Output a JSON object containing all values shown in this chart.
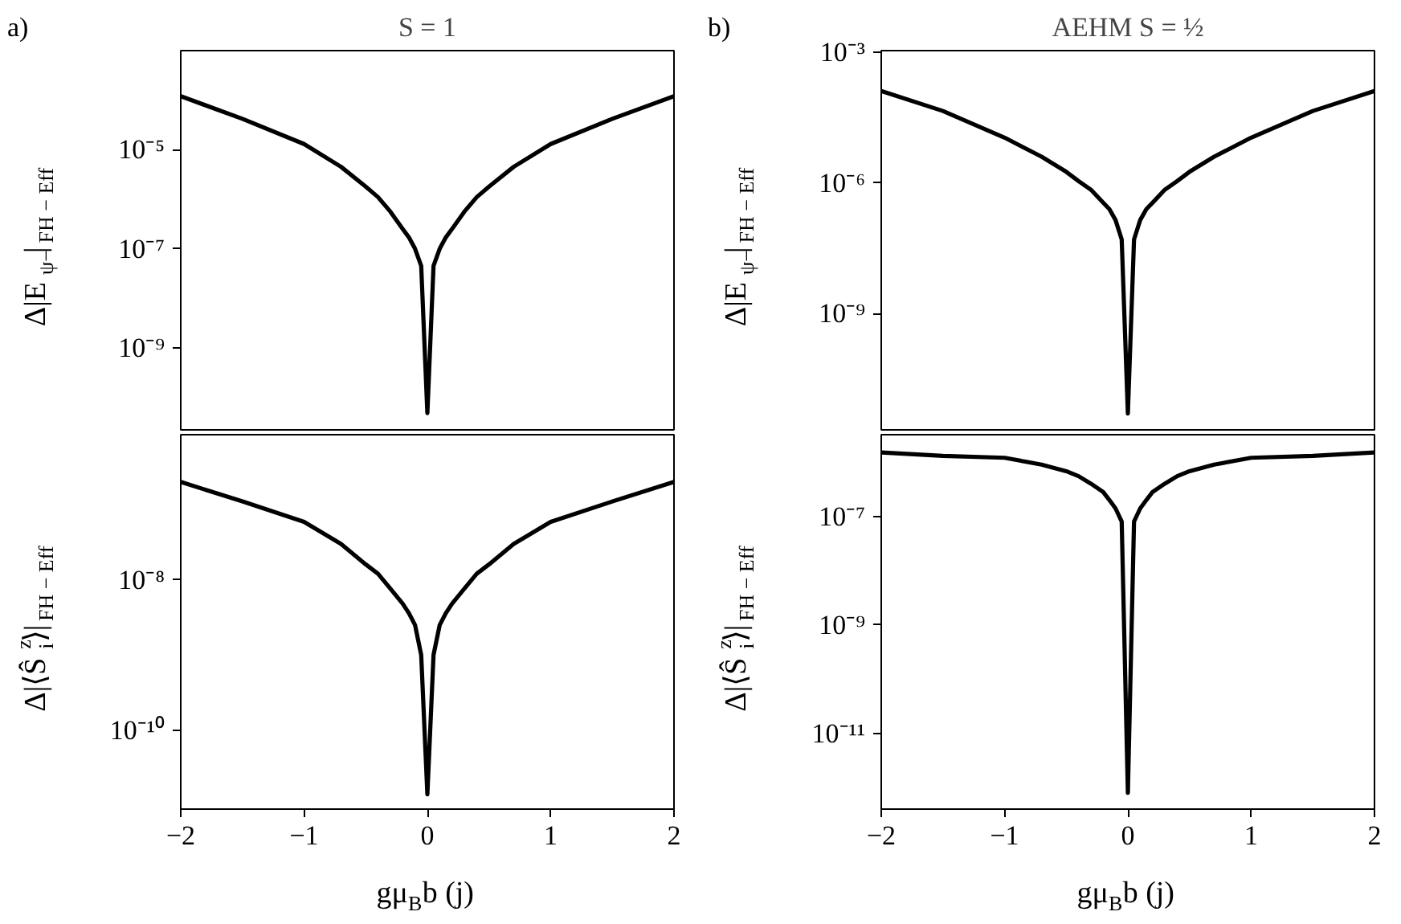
{
  "chart_data": [
    {
      "type": "line",
      "title": "S = 1",
      "annotations": [
        "a)"
      ],
      "ylabel": "Δ|E$_{ψ−}$|$_{FH − Eff}$",
      "log": true,
      "grid": false,
      "tick_labels": "y",
      "xlim": [
        -2,
        2
      ],
      "ylim": [
        2.2e-11,
        0.001
      ],
      "yticks": [
        {
          "value": 1e-05,
          "label": "10⁻⁵"
        },
        {
          "value": 1e-07,
          "label": "10⁻⁷"
        },
        {
          "value": 1e-09,
          "label": "10⁻⁹"
        }
      ],
      "x": [
        -2,
        -1.5,
        -1,
        -0.7,
        -0.5,
        -0.4,
        -0.3,
        -0.2,
        -0.15,
        -0.1,
        -0.05,
        0,
        0.05,
        0.1,
        0.15,
        0.2,
        0.3,
        0.4,
        0.5,
        0.7,
        1,
        1.5,
        2
      ],
      "series": [
        {
          "color": "#000000",
          "values": [
            0.00012,
            4.2e-05,
            1.3e-05,
            4.5e-06,
            1.8e-06,
            1.1e-06,
            5.6e-07,
            2.5e-07,
            1.7e-07,
            1e-07,
            4.5e-08,
            4.8e-11,
            4.5e-08,
            1e-07,
            1.7e-07,
            2.5e-07,
            5.6e-07,
            1.1e-06,
            1.8e-06,
            4.5e-06,
            1.3e-05,
            4.2e-05,
            0.00012
          ]
        }
      ]
    },
    {
      "type": "line",
      "title": "AEHM S = ½",
      "annotations": [
        "b)"
      ],
      "ylabel": "Δ|E$_{ψ−}$|$_{FH − Eff}$",
      "log": true,
      "grid": false,
      "tick_labels": "y",
      "xlim": [
        -2,
        2
      ],
      "ylim": [
        2.1e-12,
        0.0011
      ],
      "yticks": [
        {
          "value": 0.001,
          "label": "10⁻³"
        },
        {
          "value": 1e-06,
          "label": "10⁻⁶"
        },
        {
          "value": 1e-09,
          "label": "10⁻⁹"
        }
      ],
      "x": [
        -2,
        -1.5,
        -1,
        -0.7,
        -0.5,
        -0.4,
        -0.3,
        -0.2,
        -0.15,
        -0.1,
        -0.05,
        0,
        0.05,
        0.1,
        0.15,
        0.2,
        0.3,
        0.4,
        0.5,
        0.7,
        1,
        1.5,
        2
      ],
      "series": [
        {
          "color": "#000000",
          "values": [
            0.00013,
            4.5e-05,
            1.1e-05,
            4e-06,
            1.8e-06,
            1.1e-06,
            7e-07,
            3.5e-07,
            2.5e-07,
            1.4e-07,
            5e-08,
            5e-12,
            5e-08,
            1.4e-07,
            2.5e-07,
            3.5e-07,
            7e-07,
            1.1e-06,
            1.8e-06,
            4e-06,
            1.1e-05,
            4.5e-05,
            0.00013
          ]
        }
      ]
    },
    {
      "type": "line",
      "xlabel": "gμ$_{B}$b (j)",
      "ylabel": "Δ|⟨Ŝ$^{z}$$_{i}$⟩|$_{FH − Eff}$",
      "log": true,
      "grid": false,
      "xlim": [
        -2,
        2
      ],
      "xticks": [
        -2,
        -1,
        0,
        1,
        2
      ],
      "ylim": [
        8.9e-12,
        8.5e-07
      ],
      "yticks": [
        {
          "value": 1e-08,
          "label": "10⁻⁸"
        },
        {
          "value": 1e-10,
          "label": "10⁻¹⁰"
        }
      ],
      "x": [
        -2,
        -1.5,
        -1,
        -0.7,
        -0.5,
        -0.4,
        -0.3,
        -0.2,
        -0.15,
        -0.1,
        -0.05,
        0,
        0.05,
        0.1,
        0.15,
        0.2,
        0.3,
        0.4,
        0.5,
        0.7,
        1,
        1.5,
        2
      ],
      "series": [
        {
          "color": "#000000",
          "values": [
            2e-07,
            1.1e-07,
            5.9e-08,
            3e-08,
            1.6e-08,
            1.2e-08,
            7.6e-09,
            4.8e-09,
            3.6e-09,
            2.5e-09,
            1e-09,
            1.4e-11,
            1e-09,
            2.5e-09,
            3.6e-09,
            4.8e-09,
            7.6e-09,
            1.2e-08,
            1.6e-08,
            3e-08,
            5.9e-08,
            1.1e-07,
            2e-07
          ]
        }
      ]
    },
    {
      "type": "line",
      "xlabel": "gμ$_{B}$b (j)",
      "ylabel": "Δ|⟨Ŝ$^{z}$$_{i}$⟩|$_{FH − Eff}$",
      "log": true,
      "grid": false,
      "xlim": [
        -2,
        2
      ],
      "xticks": [
        -2,
        -1,
        0,
        1,
        2
      ],
      "ylim": [
        4e-13,
        3.2e-06
      ],
      "yticks": [
        {
          "value": 1e-07,
          "label": "10⁻⁷"
        },
        {
          "value": 1e-09,
          "label": "10⁻⁹"
        },
        {
          "value": 1e-11,
          "label": "10⁻¹¹"
        }
      ],
      "x": [
        -2,
        -1.5,
        -1,
        -0.7,
        -0.5,
        -0.4,
        -0.3,
        -0.2,
        -0.15,
        -0.1,
        -0.05,
        0,
        0.05,
        0.1,
        0.15,
        0.2,
        0.3,
        0.4,
        0.5,
        0.7,
        1,
        1.5,
        2
      ],
      "series": [
        {
          "color": "#000000",
          "values": [
            1.5e-06,
            1.3e-06,
            1.2e-06,
            9e-07,
            6.8e-07,
            5.5e-07,
            4e-07,
            2.8e-07,
            2e-07,
            1.4e-07,
            8e-08,
            8e-13,
            8e-08,
            1.4e-07,
            2e-07,
            2.8e-07,
            4e-07,
            5.5e-07,
            6.8e-07,
            9e-07,
            1.2e-06,
            1.3e-06,
            1.5e-06
          ]
        }
      ]
    }
  ]
}
